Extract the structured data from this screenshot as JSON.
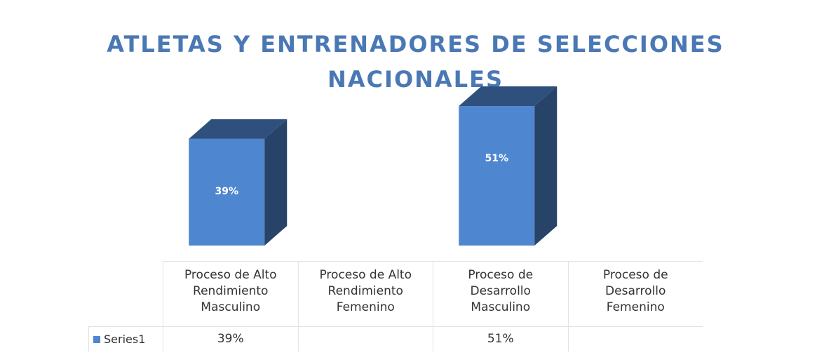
{
  "chart_data": {
    "type": "bar3d",
    "title": "ATLETAS Y ENTRENADORES DE SELECCIONES NACIONALES",
    "categories": [
      "Proceso de Alto Rendimiento Masculino",
      "Proceso de Alto Rendimiento Femenino",
      "Proceso de Desarrollo Masculino",
      "Proceso de Desarrollo Femenino"
    ],
    "series": [
      {
        "name": "Series1",
        "color": "#4f86d0",
        "values": [
          39,
          null,
          51,
          null
        ],
        "value_labels": [
          "39%",
          null,
          "51%",
          null
        ]
      }
    ]
  }
}
